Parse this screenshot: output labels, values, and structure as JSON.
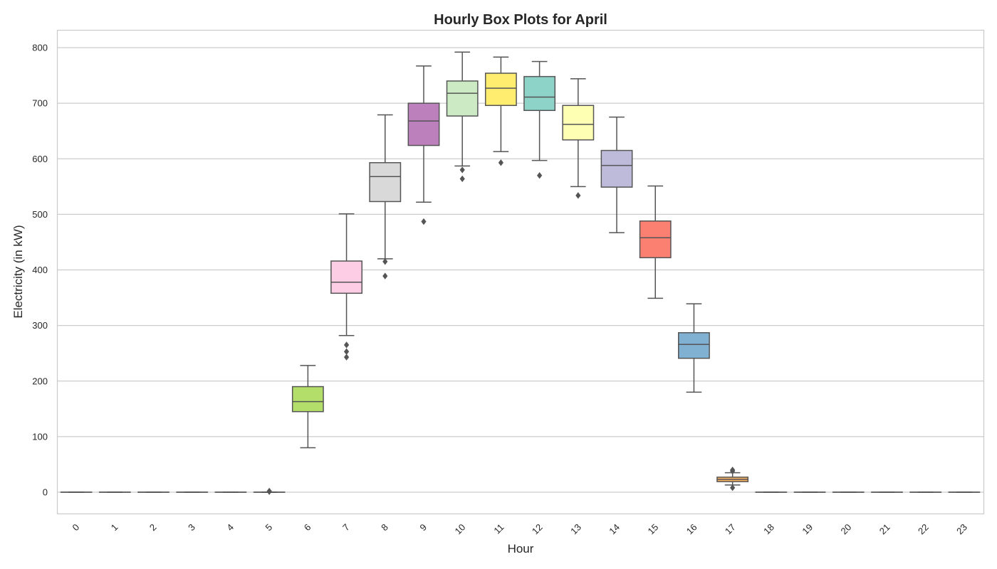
{
  "chart_data": {
    "type": "box",
    "title": "Hourly Box Plots for April",
    "xlabel": "Hour",
    "ylabel": "Electricity (in kW)",
    "ylim": [
      -40,
      833
    ],
    "yticks": [
      0,
      100,
      200,
      300,
      400,
      500,
      600,
      700,
      800
    ],
    "grid": "horizontal",
    "colors": {
      "frame": "#cccccc",
      "grid": "#cccccc",
      "line": "#555555"
    },
    "categories": [
      "0",
      "1",
      "2",
      "3",
      "4",
      "5",
      "6",
      "7",
      "8",
      "9",
      "10",
      "11",
      "12",
      "13",
      "14",
      "15",
      "16",
      "17",
      "18",
      "19",
      "20",
      "21",
      "22",
      "23"
    ],
    "boxes": [
      {
        "hour": "0",
        "color": "#8dd3c7",
        "min": 0,
        "q1": 0,
        "median": 0,
        "q3": 0,
        "max": 0,
        "outliers": []
      },
      {
        "hour": "1",
        "color": "#ffffb3",
        "min": 0,
        "q1": 0,
        "median": 0,
        "q3": 0,
        "max": 0,
        "outliers": []
      },
      {
        "hour": "2",
        "color": "#bebada",
        "min": 0,
        "q1": 0,
        "median": 0,
        "q3": 0,
        "max": 0,
        "outliers": []
      },
      {
        "hour": "3",
        "color": "#fb8072",
        "min": 0,
        "q1": 0,
        "median": 0,
        "q3": 0,
        "max": 0,
        "outliers": []
      },
      {
        "hour": "4",
        "color": "#80b1d3",
        "min": 0,
        "q1": 0,
        "median": 0,
        "q3": 0,
        "max": 0,
        "outliers": []
      },
      {
        "hour": "5",
        "color": "#fdb462",
        "min": 0,
        "q1": 0,
        "median": 0,
        "q3": 0,
        "max": 0,
        "outliers": [
          1,
          2
        ]
      },
      {
        "hour": "6",
        "color": "#b3de69",
        "min": 80,
        "q1": 145,
        "median": 163,
        "q3": 190,
        "max": 228,
        "outliers": []
      },
      {
        "hour": "7",
        "color": "#fccde5",
        "min": 282,
        "q1": 358,
        "median": 378,
        "q3": 416,
        "max": 501,
        "outliers": [
          265,
          253,
          243
        ]
      },
      {
        "hour": "8",
        "color": "#d9d9d9",
        "min": 420,
        "q1": 523,
        "median": 568,
        "q3": 593,
        "max": 679,
        "outliers": [
          415,
          389
        ]
      },
      {
        "hour": "9",
        "color": "#bc80bd",
        "min": 522,
        "q1": 624,
        "median": 668,
        "q3": 700,
        "max": 767,
        "outliers": [
          487
        ]
      },
      {
        "hour": "10",
        "color": "#ccebc5",
        "min": 587,
        "q1": 677,
        "median": 718,
        "q3": 740,
        "max": 792,
        "outliers": [
          580,
          564
        ]
      },
      {
        "hour": "11",
        "color": "#ffed6f",
        "min": 613,
        "q1": 696,
        "median": 727,
        "q3": 754,
        "max": 783,
        "outliers": [
          593
        ]
      },
      {
        "hour": "12",
        "color": "#8dd3c7",
        "min": 597,
        "q1": 687,
        "median": 711,
        "q3": 748,
        "max": 775,
        "outliers": [
          570
        ]
      },
      {
        "hour": "13",
        "color": "#ffffb3",
        "min": 550,
        "q1": 634,
        "median": 662,
        "q3": 696,
        "max": 744,
        "outliers": [
          534
        ]
      },
      {
        "hour": "14",
        "color": "#bebada",
        "min": 467,
        "q1": 549,
        "median": 588,
        "q3": 615,
        "max": 675,
        "outliers": []
      },
      {
        "hour": "15",
        "color": "#fb8072",
        "min": 349,
        "q1": 422,
        "median": 458,
        "q3": 488,
        "max": 551,
        "outliers": []
      },
      {
        "hour": "16",
        "color": "#80b1d3",
        "min": 180,
        "q1": 241,
        "median": 266,
        "q3": 287,
        "max": 339,
        "outliers": []
      },
      {
        "hour": "17",
        "color": "#fdb462",
        "min": 13,
        "q1": 19,
        "median": 23,
        "q3": 27,
        "max": 35,
        "outliers": [
          38,
          40,
          8
        ]
      },
      {
        "hour": "18",
        "color": "#b3de69",
        "min": 0,
        "q1": 0,
        "median": 0,
        "q3": 0,
        "max": 0,
        "outliers": []
      },
      {
        "hour": "19",
        "color": "#fccde5",
        "min": 0,
        "q1": 0,
        "median": 0,
        "q3": 0,
        "max": 0,
        "outliers": []
      },
      {
        "hour": "20",
        "color": "#d9d9d9",
        "min": 0,
        "q1": 0,
        "median": 0,
        "q3": 0,
        "max": 0,
        "outliers": []
      },
      {
        "hour": "21",
        "color": "#bc80bd",
        "min": 0,
        "q1": 0,
        "median": 0,
        "q3": 0,
        "max": 0,
        "outliers": []
      },
      {
        "hour": "22",
        "color": "#ccebc5",
        "min": 0,
        "q1": 0,
        "median": 0,
        "q3": 0,
        "max": 0,
        "outliers": []
      },
      {
        "hour": "23",
        "color": "#ffed6f",
        "min": 0,
        "q1": 0,
        "median": 0,
        "q3": 0,
        "max": 0,
        "outliers": []
      }
    ]
  }
}
